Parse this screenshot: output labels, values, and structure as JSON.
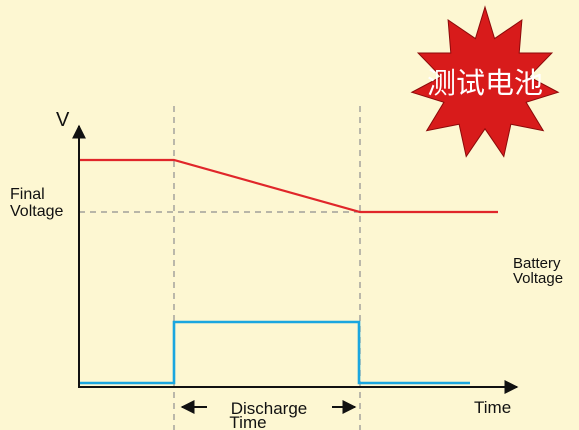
{
  "badge": {
    "text": "测试电池",
    "color": "#d81b1b"
  },
  "axes": {
    "y_label": "V",
    "x_label": "Time"
  },
  "labels": {
    "final_voltage_line1": "Final",
    "final_voltage_line2": "Voltage",
    "battery_voltage_line1": "Battery",
    "battery_voltage_line2": "Voltage",
    "discharge_line1": "Discharge",
    "discharge_line2": "Time"
  },
  "colors": {
    "background": "#fdf7d2",
    "battery_voltage_trace": "#e0262a",
    "load_trace": "#1aa6df",
    "guide_lines": "#8f8f8f",
    "axis": "#111111"
  }
}
